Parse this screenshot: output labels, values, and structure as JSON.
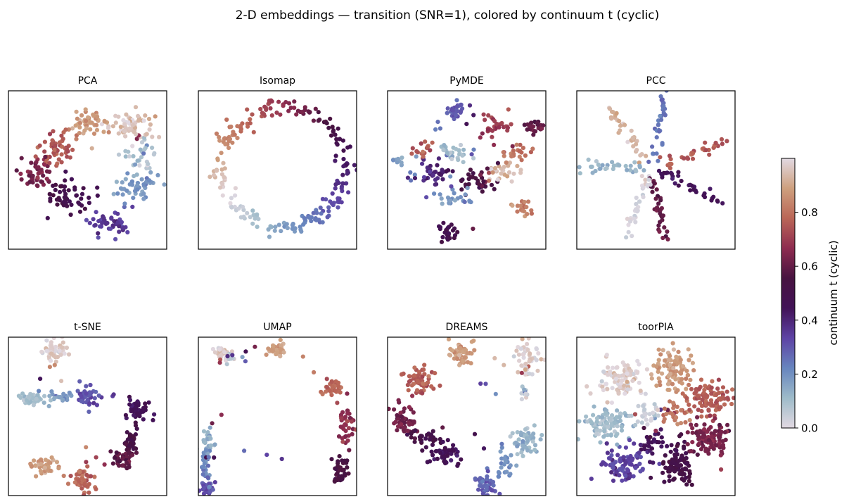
{
  "figure": {
    "title": "2-D embeddings — transition (SNR=1), colored by continuum t (cyclic)"
  },
  "colorbar": {
    "label": "continuum t (cyclic)",
    "range": [
      0,
      1
    ],
    "ticks": [
      "0.0",
      "0.2",
      "0.4",
      "0.6",
      "0.8"
    ],
    "tick_values": [
      0.0,
      0.2,
      0.4,
      0.6,
      0.8
    ],
    "colormap": "twilight_shifted",
    "colors": [
      "#e2d9e2",
      "#9ebbc9",
      "#6785be",
      "#5e43a5",
      "#421257",
      "#471340",
      "#8e2c50",
      "#ba6657",
      "#cea07e",
      "#e2d9e2"
    ]
  },
  "chart_data": [
    {
      "type": "scatter",
      "title": "PCA",
      "xticks": "none",
      "yticks": "none",
      "clusters": [
        {
          "t": 0.96,
          "x": 0.78,
          "y": 0.78,
          "sx": 0.07,
          "sy": 0.045,
          "n": 60
        },
        {
          "t": 0.88,
          "x": 0.5,
          "y": 0.79,
          "sx": 0.06,
          "sy": 0.05,
          "n": 45
        },
        {
          "t": 0.75,
          "x": 0.3,
          "y": 0.65,
          "sx": 0.05,
          "sy": 0.06,
          "n": 45
        },
        {
          "t": 0.62,
          "x": 0.18,
          "y": 0.48,
          "sx": 0.06,
          "sy": 0.05,
          "n": 45
        },
        {
          "t": 0.5,
          "x": 0.37,
          "y": 0.34,
          "sx": 0.07,
          "sy": 0.05,
          "n": 45
        },
        {
          "t": 0.35,
          "x": 0.63,
          "y": 0.16,
          "sx": 0.07,
          "sy": 0.05,
          "n": 45
        },
        {
          "t": 0.18,
          "x": 0.81,
          "y": 0.4,
          "sx": 0.07,
          "sy": 0.05,
          "n": 50
        },
        {
          "t": 0.08,
          "x": 0.84,
          "y": 0.6,
          "sx": 0.06,
          "sy": 0.06,
          "n": 25
        }
      ]
    },
    {
      "type": "scatter",
      "title": "Isomap",
      "xticks": "none",
      "yticks": "none",
      "ring": {
        "cx": 0.54,
        "cy": 0.52,
        "rx": 0.4,
        "ry": 0.38,
        "n": 230,
        "spread": 0.03
      }
    },
    {
      "type": "scatter",
      "title": "PyMDE",
      "xticks": "none",
      "yticks": "none",
      "clusters": [
        {
          "t": 0.3,
          "x": 0.44,
          "y": 0.88,
          "sx": 0.035,
          "sy": 0.03,
          "n": 30
        },
        {
          "t": 0.7,
          "x": 0.67,
          "y": 0.78,
          "sx": 0.05,
          "sy": 0.04,
          "n": 30
        },
        {
          "t": 0.6,
          "x": 0.93,
          "y": 0.77,
          "sx": 0.04,
          "sy": 0.02,
          "n": 20
        },
        {
          "t": 0.75,
          "x": 0.23,
          "y": 0.62,
          "sx": 0.04,
          "sy": 0.03,
          "n": 15
        },
        {
          "t": 0.1,
          "x": 0.44,
          "y": 0.6,
          "sx": 0.06,
          "sy": 0.03,
          "n": 25
        },
        {
          "t": 0.8,
          "x": 0.82,
          "y": 0.6,
          "sx": 0.05,
          "sy": 0.03,
          "n": 20
        },
        {
          "t": 0.4,
          "x": 0.26,
          "y": 0.48,
          "sx": 0.05,
          "sy": 0.04,
          "n": 30
        },
        {
          "t": 0.55,
          "x": 0.57,
          "y": 0.43,
          "sx": 0.07,
          "sy": 0.04,
          "n": 30
        },
        {
          "t": 0.95,
          "x": 0.72,
          "y": 0.48,
          "sx": 0.06,
          "sy": 0.04,
          "n": 25
        },
        {
          "t": 0.18,
          "x": 0.4,
          "y": 0.33,
          "sx": 0.07,
          "sy": 0.04,
          "n": 20
        },
        {
          "t": 0.85,
          "x": 0.86,
          "y": 0.25,
          "sx": 0.04,
          "sy": 0.03,
          "n": 15
        },
        {
          "t": 0.48,
          "x": 0.38,
          "y": 0.11,
          "sx": 0.03,
          "sy": 0.03,
          "n": 25
        },
        {
          "t": 0.15,
          "x": 0.06,
          "y": 0.56,
          "sx": 0.025,
          "sy": 0.02,
          "n": 10
        }
      ]
    },
    {
      "type": "scatter",
      "title": "PCC",
      "xticks": "none",
      "yticks": "none",
      "star": {
        "center": [
          0.47,
          0.51
        ],
        "arms": [
          {
            "t": 0.92,
            "angle": 125,
            "length": 0.4
          },
          {
            "t": 0.25,
            "angle": 80,
            "length": 0.45
          },
          {
            "t": 0.75,
            "angle": 20,
            "length": 0.48
          },
          {
            "t": 0.45,
            "angle": -25,
            "length": 0.45
          },
          {
            "t": 0.6,
            "angle": -80,
            "length": 0.4
          },
          {
            "t": 0.02,
            "angle": -110,
            "length": 0.4
          },
          {
            "t": 0.12,
            "angle": 178,
            "length": 0.42
          }
        ],
        "n_per_arm": 34
      }
    },
    {
      "type": "scatter",
      "title": "t-SNE",
      "xticks": "none",
      "yticks": "none",
      "clusters": [
        {
          "t": 0.98,
          "x": 0.3,
          "y": 0.91,
          "sx": 0.04,
          "sy": 0.035,
          "n": 45
        },
        {
          "t": 0.1,
          "x": 0.15,
          "y": 0.61,
          "sx": 0.04,
          "sy": 0.02,
          "n": 40
        },
        {
          "t": 0.18,
          "x": 0.34,
          "y": 0.62,
          "sx": 0.05,
          "sy": 0.015,
          "n": 20
        },
        {
          "t": 0.3,
          "x": 0.5,
          "y": 0.63,
          "sx": 0.04,
          "sy": 0.035,
          "n": 40
        },
        {
          "t": 0.45,
          "x": 0.81,
          "y": 0.54,
          "sx": 0.035,
          "sy": 0.03,
          "n": 40
        },
        {
          "t": 0.52,
          "x": 0.78,
          "y": 0.36,
          "sx": 0.02,
          "sy": 0.06,
          "n": 25
        },
        {
          "t": 0.58,
          "x": 0.74,
          "y": 0.24,
          "sx": 0.04,
          "sy": 0.03,
          "n": 40
        },
        {
          "t": 0.88,
          "x": 0.23,
          "y": 0.19,
          "sx": 0.04,
          "sy": 0.035,
          "n": 40
        },
        {
          "t": 0.78,
          "x": 0.47,
          "y": 0.09,
          "sx": 0.04,
          "sy": 0.035,
          "n": 40
        }
      ]
    },
    {
      "type": "scatter",
      "title": "UMAP",
      "xticks": "none",
      "yticks": "none",
      "clusters": [
        {
          "t": 0.98,
          "x": 0.15,
          "y": 0.9,
          "sx": 0.03,
          "sy": 0.02,
          "n": 30
        },
        {
          "t": 0.05,
          "x": 0.2,
          "y": 0.86,
          "sx": 0.015,
          "sy": 0.02,
          "n": 10
        },
        {
          "t": 0.88,
          "x": 0.49,
          "y": 0.92,
          "sx": 0.03,
          "sy": 0.025,
          "n": 30
        },
        {
          "t": 0.78,
          "x": 0.84,
          "y": 0.68,
          "sx": 0.03,
          "sy": 0.025,
          "n": 30
        },
        {
          "t": 0.68,
          "x": 0.94,
          "y": 0.45,
          "sx": 0.02,
          "sy": 0.07,
          "n": 35
        },
        {
          "t": 0.55,
          "x": 0.9,
          "y": 0.16,
          "sx": 0.025,
          "sy": 0.05,
          "n": 35
        },
        {
          "t": 0.12,
          "x": 0.05,
          "y": 0.35,
          "sx": 0.02,
          "sy": 0.04,
          "n": 25
        },
        {
          "t": 0.22,
          "x": 0.05,
          "y": 0.2,
          "sx": 0.015,
          "sy": 0.06,
          "n": 25
        },
        {
          "t": 0.32,
          "x": 0.06,
          "y": 0.05,
          "sx": 0.025,
          "sy": 0.02,
          "n": 25
        }
      ]
    },
    {
      "type": "scatter",
      "title": "DREAMS",
      "xticks": "none",
      "yticks": "none",
      "clusters": [
        {
          "t": 0.88,
          "x": 0.48,
          "y": 0.9,
          "sx": 0.04,
          "sy": 0.045,
          "n": 45
        },
        {
          "t": 0.98,
          "x": 0.88,
          "y": 0.85,
          "sx": 0.035,
          "sy": 0.055,
          "n": 45
        },
        {
          "t": 0.05,
          "x": 0.87,
          "y": 0.65,
          "sx": 0.015,
          "sy": 0.02,
          "n": 8
        },
        {
          "t": 0.76,
          "x": 0.2,
          "y": 0.73,
          "sx": 0.05,
          "sy": 0.045,
          "n": 50
        },
        {
          "t": 0.62,
          "x": 0.1,
          "y": 0.47,
          "sx": 0.04,
          "sy": 0.055,
          "n": 45
        },
        {
          "t": 0.52,
          "x": 0.24,
          "y": 0.38,
          "sx": 0.05,
          "sy": 0.03,
          "n": 25
        },
        {
          "t": 0.46,
          "x": 0.36,
          "y": 0.26,
          "sx": 0.05,
          "sy": 0.045,
          "n": 45
        },
        {
          "t": 0.12,
          "x": 0.88,
          "y": 0.35,
          "sx": 0.045,
          "sy": 0.05,
          "n": 45
        },
        {
          "t": 0.2,
          "x": 0.74,
          "y": 0.18,
          "sx": 0.03,
          "sy": 0.04,
          "n": 15
        },
        {
          "t": 0.28,
          "x": 0.62,
          "y": 0.07,
          "sx": 0.04,
          "sy": 0.035,
          "n": 40
        }
      ]
    },
    {
      "type": "scatter",
      "title": "toorPIA",
      "xticks": "none",
      "yticks": "none",
      "clusters": [
        {
          "t": 0.98,
          "x": 0.28,
          "y": 0.74,
          "sx": 0.08,
          "sy": 0.06,
          "n": 90
        },
        {
          "t": 0.88,
          "x": 0.6,
          "y": 0.8,
          "sx": 0.055,
          "sy": 0.08,
          "n": 90
        },
        {
          "t": 0.76,
          "x": 0.83,
          "y": 0.62,
          "sx": 0.075,
          "sy": 0.055,
          "n": 90
        },
        {
          "t": 0.64,
          "x": 0.84,
          "y": 0.36,
          "sx": 0.07,
          "sy": 0.06,
          "n": 90
        },
        {
          "t": 0.52,
          "x": 0.63,
          "y": 0.2,
          "sx": 0.05,
          "sy": 0.075,
          "n": 90
        },
        {
          "t": 0.34,
          "x": 0.3,
          "y": 0.2,
          "sx": 0.075,
          "sy": 0.06,
          "n": 90
        },
        {
          "t": 0.1,
          "x": 0.18,
          "y": 0.45,
          "sx": 0.08,
          "sy": 0.05,
          "n": 90
        },
        {
          "t": 0.03,
          "x": 0.45,
          "y": 0.52,
          "sx": 0.05,
          "sy": 0.04,
          "n": 25
        },
        {
          "t": 0.82,
          "x": 0.62,
          "y": 0.52,
          "sx": 0.05,
          "sy": 0.04,
          "n": 25
        },
        {
          "t": 0.45,
          "x": 0.48,
          "y": 0.34,
          "sx": 0.05,
          "sy": 0.04,
          "n": 25
        }
      ]
    }
  ]
}
